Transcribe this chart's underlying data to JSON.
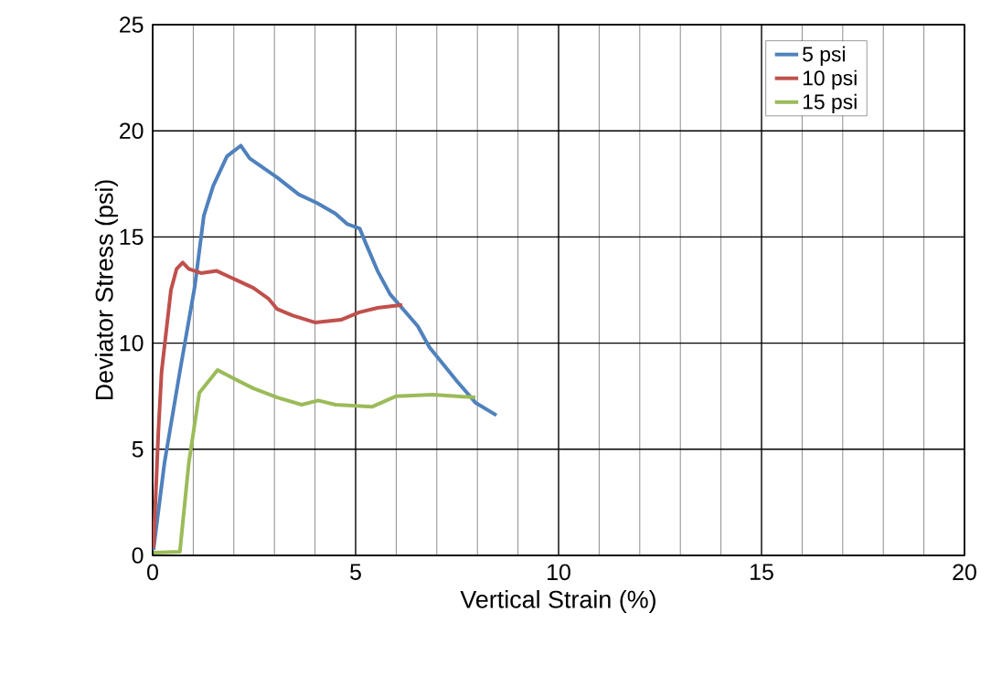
{
  "chart_data": {
    "type": "line",
    "xlabel": "Vertical Strain (%)",
    "ylabel": "Deviator Stress (psi)",
    "xlim": [
      0,
      20
    ],
    "ylim": [
      0,
      25
    ],
    "xticks": [
      0,
      {
        "value": 1,
        "label": null
      },
      {
        "value": 2,
        "label": null
      },
      {
        "value": 3,
        "label": null
      },
      {
        "value": 4,
        "label": null
      },
      5,
      {
        "value": 6,
        "label": null
      },
      {
        "value": 7,
        "label": null
      },
      {
        "value": 8,
        "label": null
      },
      {
        "value": 9,
        "label": null
      },
      10,
      {
        "value": 11,
        "label": null
      },
      {
        "value": 12,
        "label": null
      },
      {
        "value": 13,
        "label": null
      },
      {
        "value": 14,
        "label": null
      },
      15,
      {
        "value": 16,
        "label": null
      },
      {
        "value": 17,
        "label": null
      },
      {
        "value": 18,
        "label": null
      },
      {
        "value": 19,
        "label": null
      },
      20
    ],
    "yticks": [
      0,
      5,
      10,
      15,
      20,
      25
    ],
    "grid": true,
    "legend": "top right",
    "marker": "none",
    "line_style": "solid",
    "series": [
      {
        "name": "5 psi",
        "color": "#4f81bd",
        "x": [
          0.02,
          0.29,
          0.67,
          1.04,
          1.26,
          1.49,
          1.83,
          2.17,
          2.39,
          3.07,
          3.6,
          4.05,
          4.5,
          4.8,
          5.1,
          5.25,
          5.54,
          5.85,
          6.53,
          6.82,
          7.5,
          7.95,
          8.47
        ],
        "values": [
          0.26,
          4.35,
          8.66,
          12.7,
          16.0,
          17.4,
          18.8,
          19.3,
          18.7,
          17.8,
          17.0,
          16.6,
          16.1,
          15.6,
          15.4,
          14.7,
          13.4,
          12.3,
          10.8,
          9.8,
          8.2,
          7.2,
          6.6
        ]
      },
      {
        "name": "10 psi",
        "color": "#c0504d",
        "x": [
          0.02,
          0.14,
          0.22,
          0.45,
          0.59,
          0.74,
          0.89,
          1.19,
          1.58,
          2.03,
          2.48,
          2.85,
          3.07,
          3.45,
          4.01,
          4.64,
          5.09,
          5.54,
          6.15
        ],
        "values": [
          0.34,
          5.8,
          8.66,
          12.5,
          13.5,
          13.8,
          13.5,
          13.3,
          13.4,
          13.0,
          12.6,
          12.1,
          11.6,
          11.3,
          10.97,
          11.1,
          11.45,
          11.66,
          11.8
        ]
      },
      {
        "name": "15 psi",
        "color": "#9bbb59",
        "x": [
          0.02,
          0.67,
          0.89,
          1.15,
          1.6,
          1.94,
          2.48,
          3.07,
          3.67,
          4.08,
          4.5,
          5.4,
          6.0,
          6.9,
          7.95
        ],
        "values": [
          0.13,
          0.17,
          4.35,
          7.66,
          8.73,
          8.39,
          7.87,
          7.44,
          7.1,
          7.3,
          7.1,
          7.0,
          7.5,
          7.57,
          7.44
        ]
      }
    ]
  }
}
